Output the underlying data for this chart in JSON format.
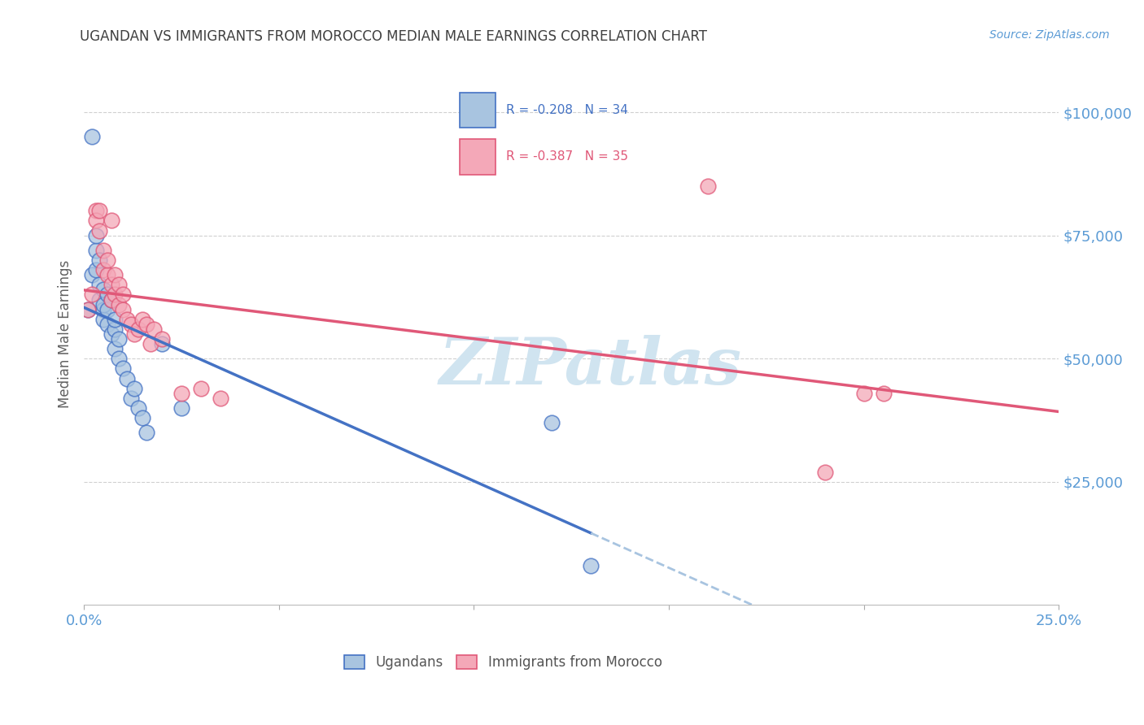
{
  "title": "UGANDAN VS IMMIGRANTS FROM MOROCCO MEDIAN MALE EARNINGS CORRELATION CHART",
  "source": "Source: ZipAtlas.com",
  "ylabel": "Median Male Earnings",
  "xlim": [
    0.0,
    0.25
  ],
  "ylim": [
    0,
    110000
  ],
  "yticks": [
    25000,
    50000,
    75000,
    100000
  ],
  "ytick_labels": [
    "$25,000",
    "$50,000",
    "$75,000",
    "$100,000"
  ],
  "xticks": [
    0.0,
    0.05,
    0.1,
    0.15,
    0.2,
    0.25
  ],
  "xtick_labels": [
    "0.0%",
    "",
    "",
    "",
    "",
    "25.0%"
  ],
  "ugandan_R": -0.208,
  "ugandan_N": 34,
  "morocco_R": -0.387,
  "morocco_N": 35,
  "ugandan_color": "#a8c4e0",
  "morocco_color": "#f4a8b8",
  "ugandan_line_color": "#4472c4",
  "morocco_line_color": "#e05878",
  "dashed_line_color": "#a8c4e0",
  "watermark": "ZIPatlas",
  "watermark_color": "#d0e4f0",
  "title_color": "#404040",
  "axis_label_color": "#606060",
  "tick_color": "#5b9bd5",
  "grid_color": "#d0d0d0",
  "ugandan_x": [
    0.001,
    0.002,
    0.002,
    0.003,
    0.003,
    0.003,
    0.004,
    0.004,
    0.004,
    0.005,
    0.005,
    0.005,
    0.005,
    0.006,
    0.006,
    0.006,
    0.007,
    0.007,
    0.008,
    0.008,
    0.008,
    0.009,
    0.009,
    0.01,
    0.011,
    0.012,
    0.013,
    0.014,
    0.015,
    0.016,
    0.02,
    0.025,
    0.12,
    0.13
  ],
  "ugandan_y": [
    60000,
    95000,
    67000,
    72000,
    68000,
    75000,
    65000,
    62000,
    70000,
    60000,
    64000,
    58000,
    61000,
    63000,
    57000,
    60000,
    55000,
    62000,
    56000,
    52000,
    58000,
    50000,
    54000,
    48000,
    46000,
    42000,
    44000,
    40000,
    38000,
    35000,
    53000,
    40000,
    37000,
    8000
  ],
  "morocco_x": [
    0.001,
    0.002,
    0.003,
    0.003,
    0.004,
    0.004,
    0.005,
    0.005,
    0.006,
    0.006,
    0.007,
    0.007,
    0.007,
    0.008,
    0.008,
    0.009,
    0.009,
    0.01,
    0.01,
    0.011,
    0.012,
    0.013,
    0.014,
    0.015,
    0.016,
    0.017,
    0.018,
    0.02,
    0.025,
    0.03,
    0.035,
    0.16,
    0.19,
    0.2,
    0.205
  ],
  "morocco_y": [
    60000,
    63000,
    80000,
    78000,
    80000,
    76000,
    72000,
    68000,
    67000,
    70000,
    65000,
    62000,
    78000,
    67000,
    63000,
    61000,
    65000,
    60000,
    63000,
    58000,
    57000,
    55000,
    56000,
    58000,
    57000,
    53000,
    56000,
    54000,
    43000,
    44000,
    42000,
    85000,
    27000,
    43000,
    43000
  ]
}
